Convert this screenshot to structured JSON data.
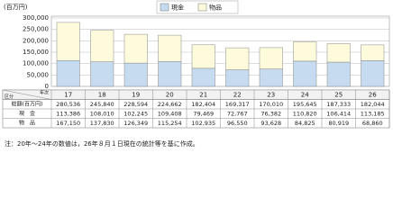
{
  "chart_data": {
    "type": "bar",
    "stacked": true,
    "y_unit": "(百万円)",
    "categories": [
      "17",
      "18",
      "19",
      "20",
      "21",
      "22",
      "23",
      "24",
      "25",
      "26"
    ],
    "series": [
      {
        "name": "現金",
        "table_label": "現　金",
        "color": "#c6dbef",
        "values": [
          113386,
          108010,
          102245,
          109408,
          79469,
          72767,
          76382,
          110820,
          106414,
          113185
        ],
        "value_labels": [
          "113,386",
          "108,010",
          "102,245",
          "109,408",
          "79,469",
          "72,767",
          "76,382",
          "110,820",
          "106,414",
          "113,185"
        ]
      },
      {
        "name": "物品",
        "table_label": "物　品",
        "color": "#fdfbdc",
        "values": [
          167150,
          137830,
          126349,
          115254,
          102935,
          96550,
          93628,
          84825,
          80919,
          68860
        ],
        "value_labels": [
          "167,150",
          "137,830",
          "126,349",
          "115,254",
          "102,935",
          "96,550",
          "93,628",
          "84,825",
          "80,919",
          "68,860"
        ]
      }
    ],
    "total": {
      "table_label": "総額(百万円)",
      "labels": [
        "280,536",
        "245,840",
        "228,594",
        "224,662",
        "182,404",
        "169,317",
        "170,010",
        "195,645",
        "187,333",
        "182,044"
      ]
    },
    "table_corner": [
      "区分",
      "年次"
    ],
    "ylim": [
      0,
      300000
    ],
    "yticks": [
      {
        "value": 0,
        "label": "0"
      },
      {
        "value": 50000,
        "label": "50,000"
      },
      {
        "value": 100000,
        "label": "100,000"
      },
      {
        "value": 150000,
        "label": "150,000"
      },
      {
        "value": 200000,
        "label": "200,000"
      },
      {
        "value": 250000,
        "label": "250,000"
      },
      {
        "value": 300000,
        "label": "300,000"
      }
    ],
    "grid": true,
    "note": "注：20年～24年の数値は，26年８月１日現在の統計等を基に作成。"
  }
}
